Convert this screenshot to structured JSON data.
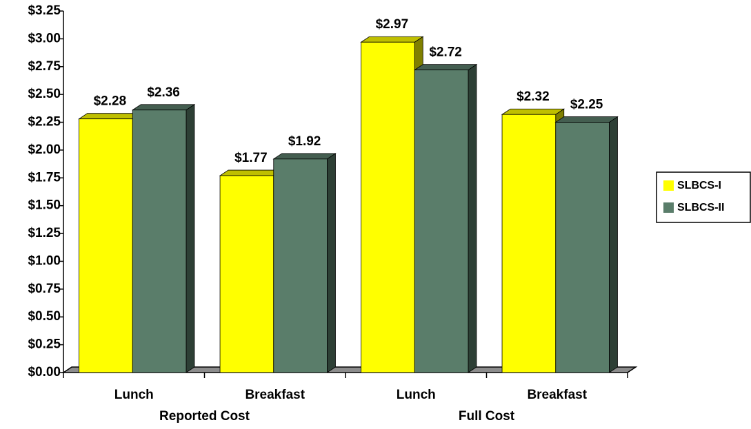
{
  "chart_data": {
    "type": "bar3d",
    "categories": [
      "Lunch",
      "Breakfast",
      "Lunch",
      "Breakfast"
    ],
    "group_labels": [
      "Reported Cost",
      "Full Cost"
    ],
    "series": [
      {
        "name": "SLBCS-I",
        "color": "#ffff00",
        "values": [
          2.28,
          1.77,
          2.97,
          2.32
        ],
        "value_labels": [
          "$2.28",
          "$1.77",
          "$2.97",
          "$2.32"
        ]
      },
      {
        "name": "SLBCS-II",
        "color": "#5a7d6a",
        "values": [
          2.36,
          1.92,
          2.72,
          2.25
        ],
        "value_labels": [
          "$2.36",
          "$1.92",
          "$2.72",
          "$2.25"
        ]
      }
    ],
    "ylim": [
      0,
      3.25
    ],
    "yticks": [
      {
        "value": 0,
        "label": "$0.00"
      },
      {
        "value": 0.25,
        "label": "$0.25"
      },
      {
        "value": 0.5,
        "label": "$0.50"
      },
      {
        "value": 0.75,
        "label": "$0.75"
      },
      {
        "value": 1,
        "label": "$1.00"
      },
      {
        "value": 1.25,
        "label": "$1.25"
      },
      {
        "value": 1.5,
        "label": "$1.50"
      },
      {
        "value": 1.75,
        "label": "$1.75"
      },
      {
        "value": 2,
        "label": "$2.00"
      },
      {
        "value": 2.25,
        "label": "$2.25"
      },
      {
        "value": 2.5,
        "label": "$2.50"
      },
      {
        "value": 2.75,
        "label": "$2.75"
      },
      {
        "value": 3,
        "label": "$3.00"
      },
      {
        "value": 3.25,
        "label": "$3.25"
      }
    ],
    "legend": "right"
  }
}
